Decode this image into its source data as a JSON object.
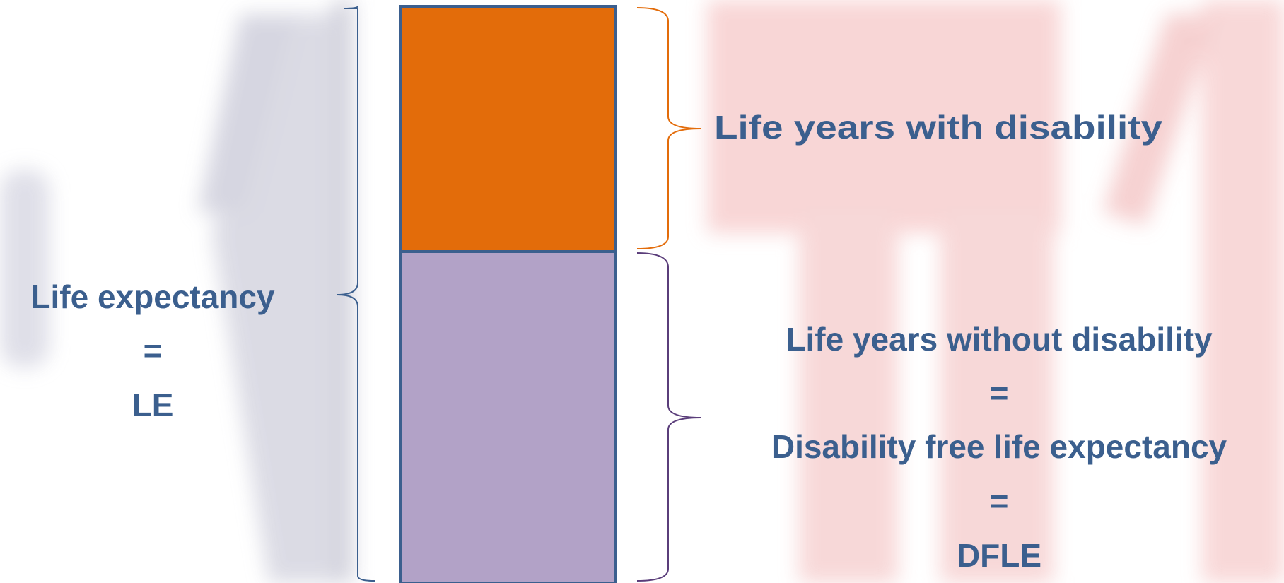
{
  "left_label": {
    "lines": [
      "Life expectancy",
      "=",
      "LE"
    ]
  },
  "top_label": "Life years with disability",
  "bottom_label": {
    "lines": [
      "Life years without disability",
      "=",
      "Disability free life expectancy",
      "=",
      "DFLE"
    ]
  }
}
